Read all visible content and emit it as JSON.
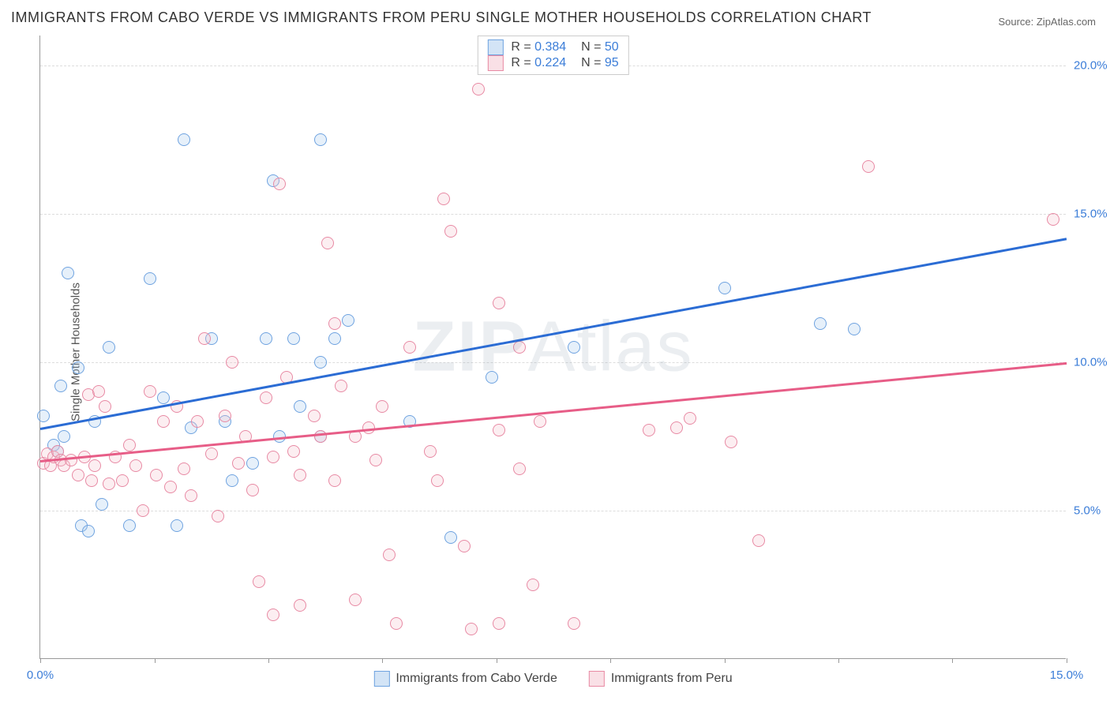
{
  "title": "IMMIGRANTS FROM CABO VERDE VS IMMIGRANTS FROM PERU SINGLE MOTHER HOUSEHOLDS CORRELATION CHART",
  "source_label": "Source: ZipAtlas.com",
  "ylabel": "Single Mother Households",
  "watermark": "ZIPAtlas",
  "chart": {
    "type": "scatter",
    "background_color": "#ffffff",
    "grid_color": "#dddddd",
    "xlim": [
      0,
      15
    ],
    "ylim": [
      0,
      21
    ],
    "xtick_labels": [
      "0.0%",
      "15.0%"
    ],
    "xtick_positions": [
      0,
      15
    ],
    "xaxis_minor_ticks": [
      0,
      1.67,
      3.33,
      5.0,
      6.67,
      8.33,
      10.0,
      11.67,
      13.33,
      15.0
    ],
    "ytick_labels": [
      "5.0%",
      "10.0%",
      "15.0%",
      "20.0%"
    ],
    "ytick_positions": [
      5,
      10,
      15,
      20
    ],
    "point_radius": 8,
    "point_border_width": 1.2,
    "point_fill_opacity": 0.28,
    "series": [
      {
        "name": "Immigrants from Cabo Verde",
        "color_border": "#6fa3e0",
        "color_fill": "#a7c9ee",
        "trendline_color": "#2b6cd4",
        "R": "0.384",
        "N": "50",
        "trend_y0": 7.8,
        "trend_y1": 14.2,
        "points": [
          [
            0.05,
            8.2
          ],
          [
            0.2,
            7.2
          ],
          [
            0.25,
            7.0
          ],
          [
            0.3,
            9.2
          ],
          [
            0.35,
            7.5
          ],
          [
            0.4,
            13.0
          ],
          [
            0.55,
            9.8
          ],
          [
            0.6,
            4.5
          ],
          [
            0.7,
            4.3
          ],
          [
            0.8,
            8.0
          ],
          [
            0.9,
            5.2
          ],
          [
            1.0,
            10.5
          ],
          [
            1.3,
            4.5
          ],
          [
            1.6,
            12.8
          ],
          [
            1.8,
            8.8
          ],
          [
            2.0,
            4.5
          ],
          [
            2.1,
            17.5
          ],
          [
            2.2,
            7.8
          ],
          [
            2.5,
            10.8
          ],
          [
            2.7,
            8.0
          ],
          [
            2.8,
            6.0
          ],
          [
            3.1,
            6.6
          ],
          [
            3.3,
            10.8
          ],
          [
            3.4,
            16.1
          ],
          [
            3.5,
            7.5
          ],
          [
            3.7,
            10.8
          ],
          [
            3.8,
            8.5
          ],
          [
            4.1,
            10.0
          ],
          [
            4.1,
            17.5
          ],
          [
            4.1,
            7.5
          ],
          [
            4.3,
            10.8
          ],
          [
            4.5,
            11.4
          ],
          [
            5.4,
            8.0
          ],
          [
            6.0,
            4.1
          ],
          [
            6.6,
            9.5
          ],
          [
            7.8,
            10.5
          ],
          [
            10.0,
            12.5
          ],
          [
            11.4,
            11.3
          ],
          [
            11.9,
            11.1
          ]
        ]
      },
      {
        "name": "Immigrants from Peru",
        "color_border": "#e88aa4",
        "color_fill": "#f4c1ce",
        "trendline_color": "#e75d87",
        "R": "0.224",
        "N": "95",
        "trend_y0": 6.7,
        "trend_y1": 10.0,
        "points": [
          [
            0.05,
            6.6
          ],
          [
            0.1,
            6.9
          ],
          [
            0.15,
            6.5
          ],
          [
            0.2,
            6.8
          ],
          [
            0.25,
            7.0
          ],
          [
            0.3,
            6.7
          ],
          [
            0.35,
            6.5
          ],
          [
            0.45,
            6.7
          ],
          [
            0.55,
            6.2
          ],
          [
            0.65,
            6.8
          ],
          [
            0.7,
            8.9
          ],
          [
            0.75,
            6.0
          ],
          [
            0.8,
            6.5
          ],
          [
            0.85,
            9.0
          ],
          [
            0.95,
            8.5
          ],
          [
            1.0,
            5.9
          ],
          [
            1.1,
            6.8
          ],
          [
            1.2,
            6.0
          ],
          [
            1.3,
            7.2
          ],
          [
            1.4,
            6.5
          ],
          [
            1.5,
            5.0
          ],
          [
            1.6,
            9.0
          ],
          [
            1.7,
            6.2
          ],
          [
            1.8,
            8.0
          ],
          [
            1.9,
            5.8
          ],
          [
            2.0,
            8.5
          ],
          [
            2.1,
            6.4
          ],
          [
            2.2,
            5.5
          ],
          [
            2.3,
            8.0
          ],
          [
            2.4,
            10.8
          ],
          [
            2.5,
            6.9
          ],
          [
            2.6,
            4.8
          ],
          [
            2.7,
            8.2
          ],
          [
            2.8,
            10.0
          ],
          [
            2.9,
            6.6
          ],
          [
            3.0,
            7.5
          ],
          [
            3.1,
            5.7
          ],
          [
            3.2,
            2.6
          ],
          [
            3.3,
            8.8
          ],
          [
            3.4,
            6.8
          ],
          [
            3.4,
            1.5
          ],
          [
            3.5,
            16.0
          ],
          [
            3.6,
            9.5
          ],
          [
            3.7,
            7.0
          ],
          [
            3.8,
            6.2
          ],
          [
            3.8,
            1.8
          ],
          [
            4.0,
            8.2
          ],
          [
            4.1,
            7.5
          ],
          [
            4.2,
            14.0
          ],
          [
            4.3,
            6.0
          ],
          [
            4.3,
            11.3
          ],
          [
            4.4,
            9.2
          ],
          [
            4.6,
            7.5
          ],
          [
            4.6,
            2.0
          ],
          [
            4.8,
            7.8
          ],
          [
            4.9,
            6.7
          ],
          [
            5.0,
            8.5
          ],
          [
            5.1,
            3.5
          ],
          [
            5.2,
            1.2
          ],
          [
            5.4,
            10.5
          ],
          [
            5.7,
            7.0
          ],
          [
            5.8,
            6.0
          ],
          [
            5.9,
            15.5
          ],
          [
            6.0,
            14.4
          ],
          [
            6.2,
            3.8
          ],
          [
            6.3,
            1.0
          ],
          [
            6.4,
            19.2
          ],
          [
            6.7,
            7.7
          ],
          [
            6.7,
            1.2
          ],
          [
            6.7,
            12.0
          ],
          [
            7.0,
            6.4
          ],
          [
            7.0,
            10.5
          ],
          [
            7.2,
            2.5
          ],
          [
            7.3,
            8.0
          ],
          [
            7.8,
            1.2
          ],
          [
            8.9,
            7.7
          ],
          [
            9.3,
            7.8
          ],
          [
            9.5,
            8.1
          ],
          [
            10.1,
            7.3
          ],
          [
            10.5,
            4.0
          ],
          [
            12.1,
            16.6
          ],
          [
            14.8,
            14.8
          ]
        ]
      }
    ],
    "legend_top": {
      "R_label": "R =",
      "N_label": "N ="
    },
    "legend_bottom": {
      "series_labels": [
        "Immigrants from Cabo Verde",
        "Immigrants from Peru"
      ]
    }
  }
}
